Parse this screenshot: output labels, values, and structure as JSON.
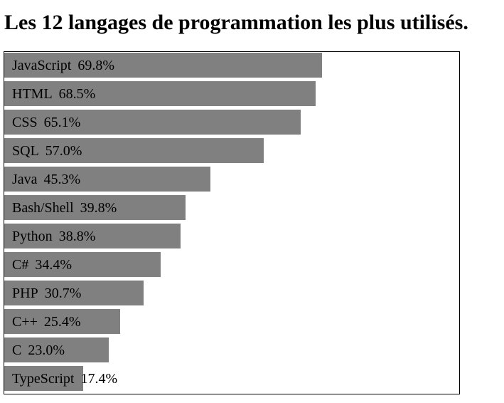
{
  "chart_data": {
    "type": "bar",
    "orientation": "horizontal",
    "title": "Les 12 langages de programmation les plus utilisés.",
    "xlabel": "",
    "ylabel": "",
    "xlim": [
      0,
      100
    ],
    "grid": false,
    "legend": "none",
    "bar_color": "#808080",
    "categories": [
      "JavaScript",
      "HTML",
      "CSS",
      "SQL",
      "Java",
      "Bash/Shell",
      "Python",
      "C#",
      "PHP",
      "C++",
      "C",
      "TypeScript"
    ],
    "values": [
      69.8,
      68.5,
      65.1,
      57.0,
      45.3,
      39.8,
      38.8,
      34.4,
      30.7,
      25.4,
      23.0,
      17.4
    ],
    "value_labels": [
      "69.8%",
      "68.5%",
      "65.1%",
      "57.0%",
      "45.3%",
      "39.8%",
      "38.8%",
      "34.4%",
      "30.7%",
      "25.4%",
      "23.0%",
      "17.4%"
    ]
  }
}
